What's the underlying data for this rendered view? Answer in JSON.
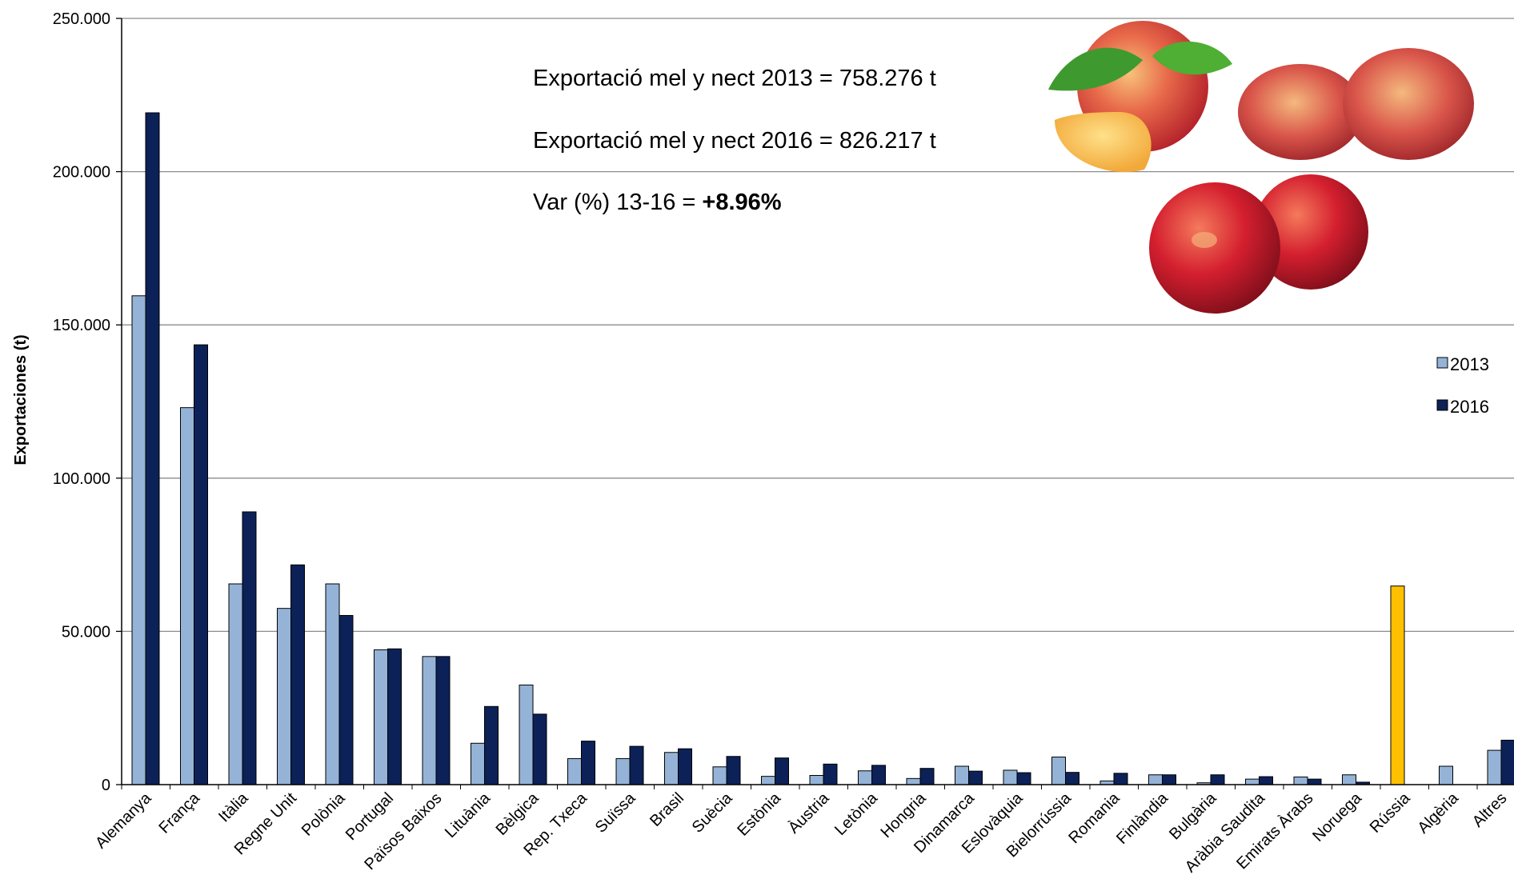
{
  "chart_data": {
    "type": "bar",
    "ylabel": "Exportaciones (t)",
    "ylim": [
      0,
      250000
    ],
    "yticks": [
      0,
      50000,
      100000,
      150000,
      200000,
      250000
    ],
    "ytick_labels": [
      "0",
      "50.000",
      "100.000",
      "150.000",
      "200.000",
      "250.000"
    ],
    "grid": "horizontal",
    "legend_position": "right",
    "categories": [
      "Alemanya",
      "França",
      "Itàlia",
      "Regne Unit",
      "Polònia",
      "Portugal",
      "Països Baixos",
      "Lituània",
      "Bèlgica",
      "Rep. Txeca",
      "Suïssa",
      "Brasil",
      "Suècia",
      "Estònia",
      "Àustria",
      "Letònia",
      "Hongria",
      "Dinamarca",
      "Eslovàquia",
      "Bielorrússia",
      "Romania",
      "Finlàndia",
      "Bulgària",
      "Aràbia Saudita",
      "Emirats Àrabs",
      "Noruega",
      "Rússia",
      "Algèria",
      "Altres"
    ],
    "series": [
      {
        "name": "2013",
        "color": "#95b3d7",
        "values": [
          159500,
          123000,
          65500,
          57500,
          65500,
          44000,
          41800,
          13500,
          32500,
          8500,
          8500,
          10500,
          5800,
          2700,
          3000,
          4500,
          2000,
          6000,
          4700,
          9000,
          1200,
          3200,
          600,
          1800,
          2500,
          3200,
          64800,
          6000,
          11200
        ]
      },
      {
        "name": "2016",
        "color": "#0c2157",
        "values": [
          219200,
          143500,
          89000,
          71700,
          55200,
          44300,
          41800,
          25500,
          23000,
          14200,
          12500,
          11700,
          9200,
          8700,
          6700,
          6300,
          5300,
          4400,
          3900,
          4000,
          3700,
          3200,
          3200,
          2600,
          1800,
          800,
          0,
          0,
          14500
        ]
      }
    ],
    "highlight": {
      "category": "Rússia",
      "series": "2013",
      "color": "#ffc000"
    },
    "annotations": {
      "line1": "Exportació mel y nect 2013 = 758.276 t",
      "line2": "Exportació mel y nect 2016 = 826.217 t",
      "line3_prefix": "Var (%) 13-16 = ",
      "line3_value": "+8.96%"
    }
  }
}
